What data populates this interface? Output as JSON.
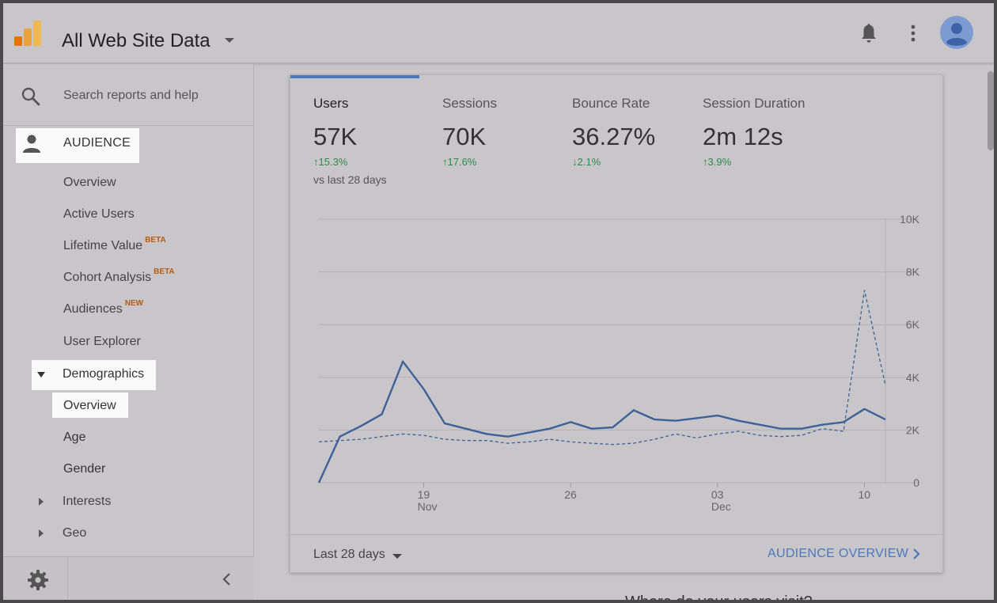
{
  "header": {
    "title": "All Web Site Data"
  },
  "sidebar": {
    "search_placeholder": "Search reports and help",
    "section_label": "AUDIENCE",
    "items": [
      {
        "label": "Overview"
      },
      {
        "label": "Active Users"
      },
      {
        "label": "Lifetime Value",
        "badge": "BETA"
      },
      {
        "label": "Cohort Analysis",
        "badge": "BETA"
      },
      {
        "label": "Audiences",
        "badge": "NEW"
      },
      {
        "label": "User Explorer"
      },
      {
        "label": "Demographics"
      },
      {
        "label": "Overview"
      },
      {
        "label": "Age"
      },
      {
        "label": "Gender"
      },
      {
        "label": "Interests"
      },
      {
        "label": "Geo"
      }
    ]
  },
  "card": {
    "metrics": [
      {
        "label": "Users",
        "value": "57K",
        "change": "↑15.3%"
      },
      {
        "label": "Sessions",
        "value": "70K",
        "change": "↑17.6%"
      },
      {
        "label": "Bounce Rate",
        "value": "36.27%",
        "change": "↓2.1%"
      },
      {
        "label": "Session Duration",
        "value": "2m 12s",
        "change": "↑3.9%"
      }
    ],
    "vs_label": "vs last 28 days",
    "range_label": "Last 28 days",
    "overview_link": "AUDIENCE OVERVIEW"
  },
  "below_text": "Where do your users visit?",
  "colors": {
    "accent": "#4a79c0",
    "positive": "#2d8a4e",
    "badge": "#b85c10",
    "highlight": "#fafafa"
  },
  "chart_data": {
    "type": "line",
    "x_tick_labels": [
      {
        "day": "19",
        "month": "Nov"
      },
      {
        "day": "26",
        "month": ""
      },
      {
        "day": "03",
        "month": "Dec"
      },
      {
        "day": "10",
        "month": ""
      }
    ],
    "y_tick_labels": [
      "10K",
      "8K",
      "6K",
      "4K",
      "2K",
      "0"
    ],
    "ylim": [
      0,
      10000
    ],
    "grid": true,
    "series": [
      {
        "style": "solid",
        "values": [
          0,
          1750,
          2150,
          2600,
          4600,
          3550,
          2250,
          2050,
          1850,
          1750,
          1900,
          2050,
          2300,
          2050,
          2100,
          2750,
          2400,
          2350,
          2450,
          2550,
          2350,
          2200,
          2050,
          2050,
          2200,
          2300,
          2800,
          2400
        ]
      },
      {
        "style": "dashed",
        "values": [
          1550,
          1600,
          1650,
          1750,
          1850,
          1800,
          1650,
          1600,
          1600,
          1500,
          1550,
          1650,
          1550,
          1500,
          1450,
          1500,
          1650,
          1850,
          1700,
          1850,
          1950,
          1800,
          1750,
          1800,
          2050,
          1950,
          7300,
          3700
        ]
      }
    ]
  }
}
